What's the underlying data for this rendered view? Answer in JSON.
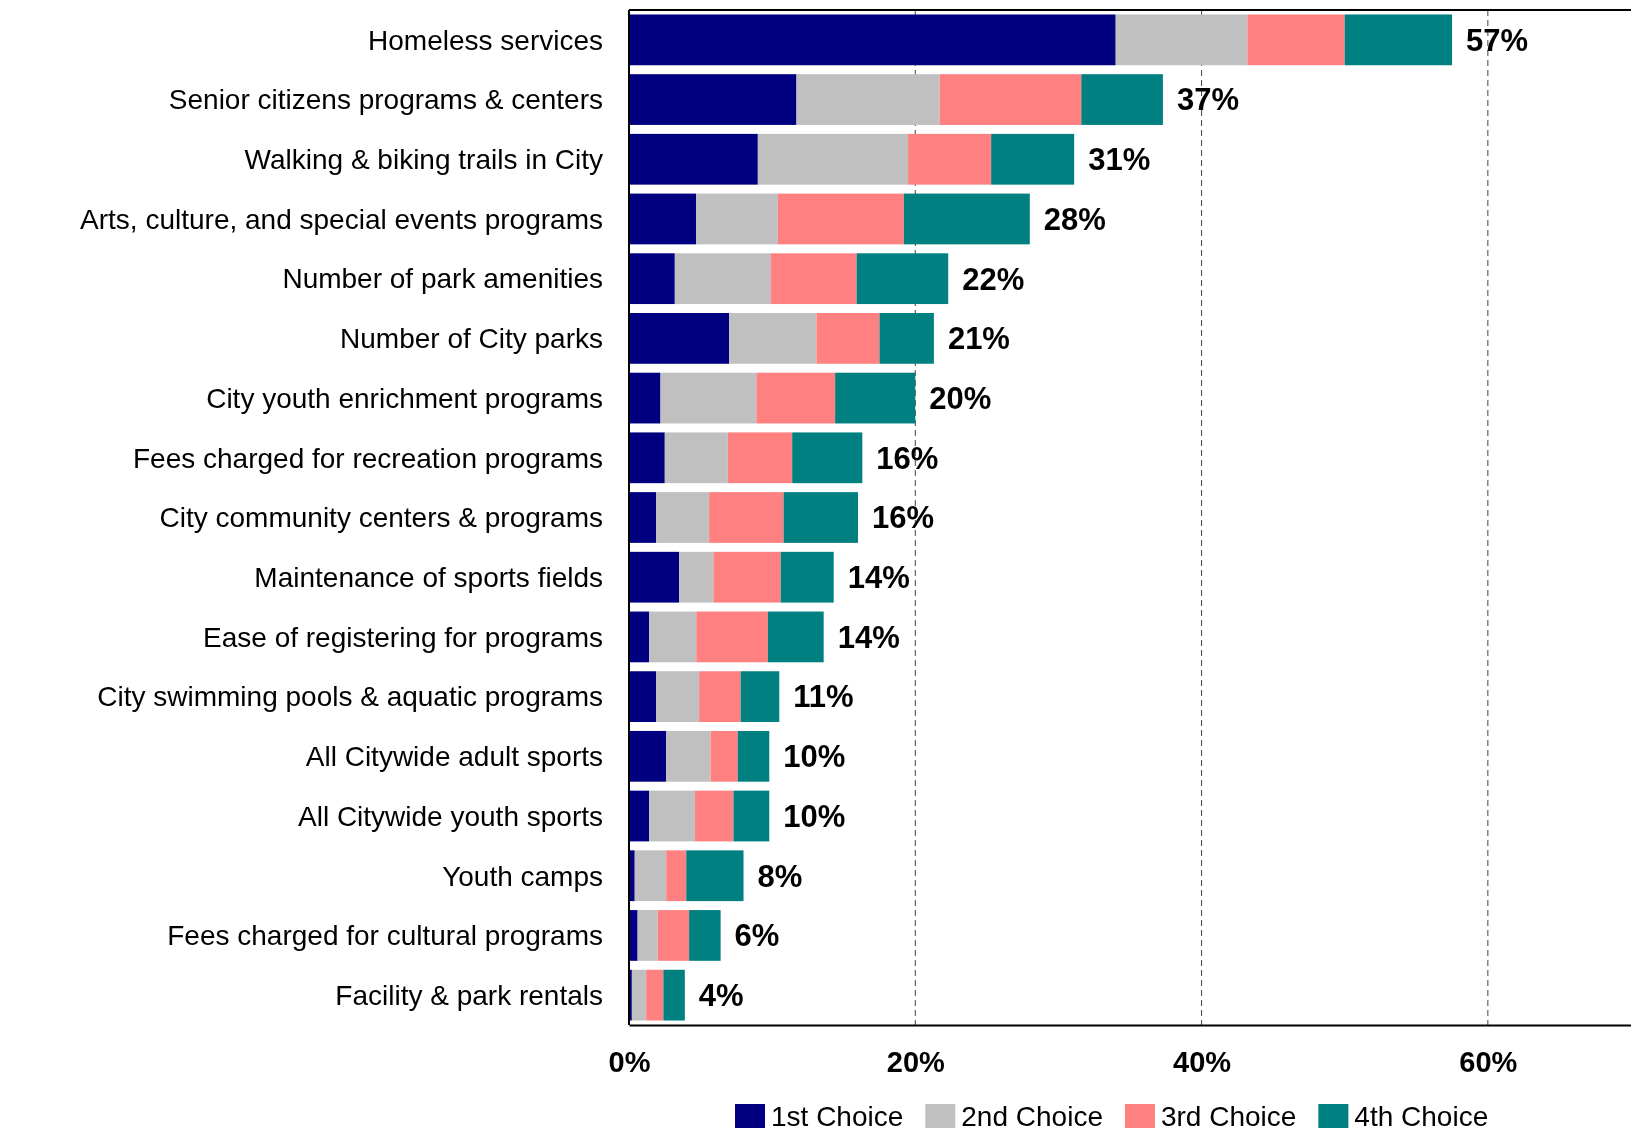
{
  "chart_data": {
    "type": "bar",
    "orientation": "horizontal",
    "stacked": true,
    "categories": [
      "Homeless services",
      "Senior citizens programs & centers",
      "Walking & biking trails in City",
      "Arts, culture, and special events programs",
      "Number of park amenities",
      "Number of City parks",
      "City youth enrichment programs",
      "Fees charged for recreation programs",
      "City community centers & programs",
      "Maintenance of sports fields",
      "Ease of registering for programs",
      "City swimming pools & aquatic programs",
      "All Citywide adult sports",
      "All Citywide youth sports",
      "Youth camps",
      "Fees charged for cultural programs",
      "Facility & park rentals"
    ],
    "series": [
      {
        "name": "1st Choice",
        "color": "#000080",
        "values": [
          34.0,
          11.7,
          9.0,
          4.7,
          3.2,
          7.0,
          2.2,
          2.5,
          1.9,
          3.5,
          1.4,
          1.9,
          2.6,
          1.4,
          0.4,
          0.6,
          0.2
        ]
      },
      {
        "name": "2nd Choice",
        "color": "#c0c0c0",
        "values": [
          9.2,
          10.0,
          10.5,
          5.7,
          6.7,
          6.1,
          6.7,
          4.4,
          3.7,
          2.4,
          3.3,
          3.0,
          3.1,
          3.2,
          2.2,
          1.4,
          1.0
        ]
      },
      {
        "name": "3rd Choice",
        "color": "#ff8080",
        "values": [
          6.8,
          9.9,
          5.8,
          8.8,
          6.0,
          4.4,
          5.5,
          4.5,
          5.2,
          4.7,
          5.0,
          2.9,
          1.9,
          2.7,
          1.4,
          2.2,
          1.2
        ]
      },
      {
        "name": "4th Choice",
        "color": "#008080",
        "values": [
          7.5,
          5.7,
          5.8,
          8.8,
          6.4,
          3.8,
          5.6,
          4.9,
          5.2,
          3.7,
          3.9,
          2.7,
          2.2,
          2.5,
          4.0,
          2.2,
          1.5
        ]
      }
    ],
    "totals": [
      "57%",
      "37%",
      "31%",
      "28%",
      "22%",
      "21%",
      "20%",
      "16%",
      "16%",
      "14%",
      "14%",
      "11%",
      "10%",
      "10%",
      "8%",
      "6%",
      "4%"
    ],
    "xlim": [
      0,
      70
    ],
    "xticks": [
      {
        "value": 0,
        "label": "0%"
      },
      {
        "value": 20,
        "label": "20%"
      },
      {
        "value": 40,
        "label": "40%"
      },
      {
        "value": 60,
        "label": "60%"
      }
    ],
    "grid": "x",
    "legend": "bottom"
  }
}
